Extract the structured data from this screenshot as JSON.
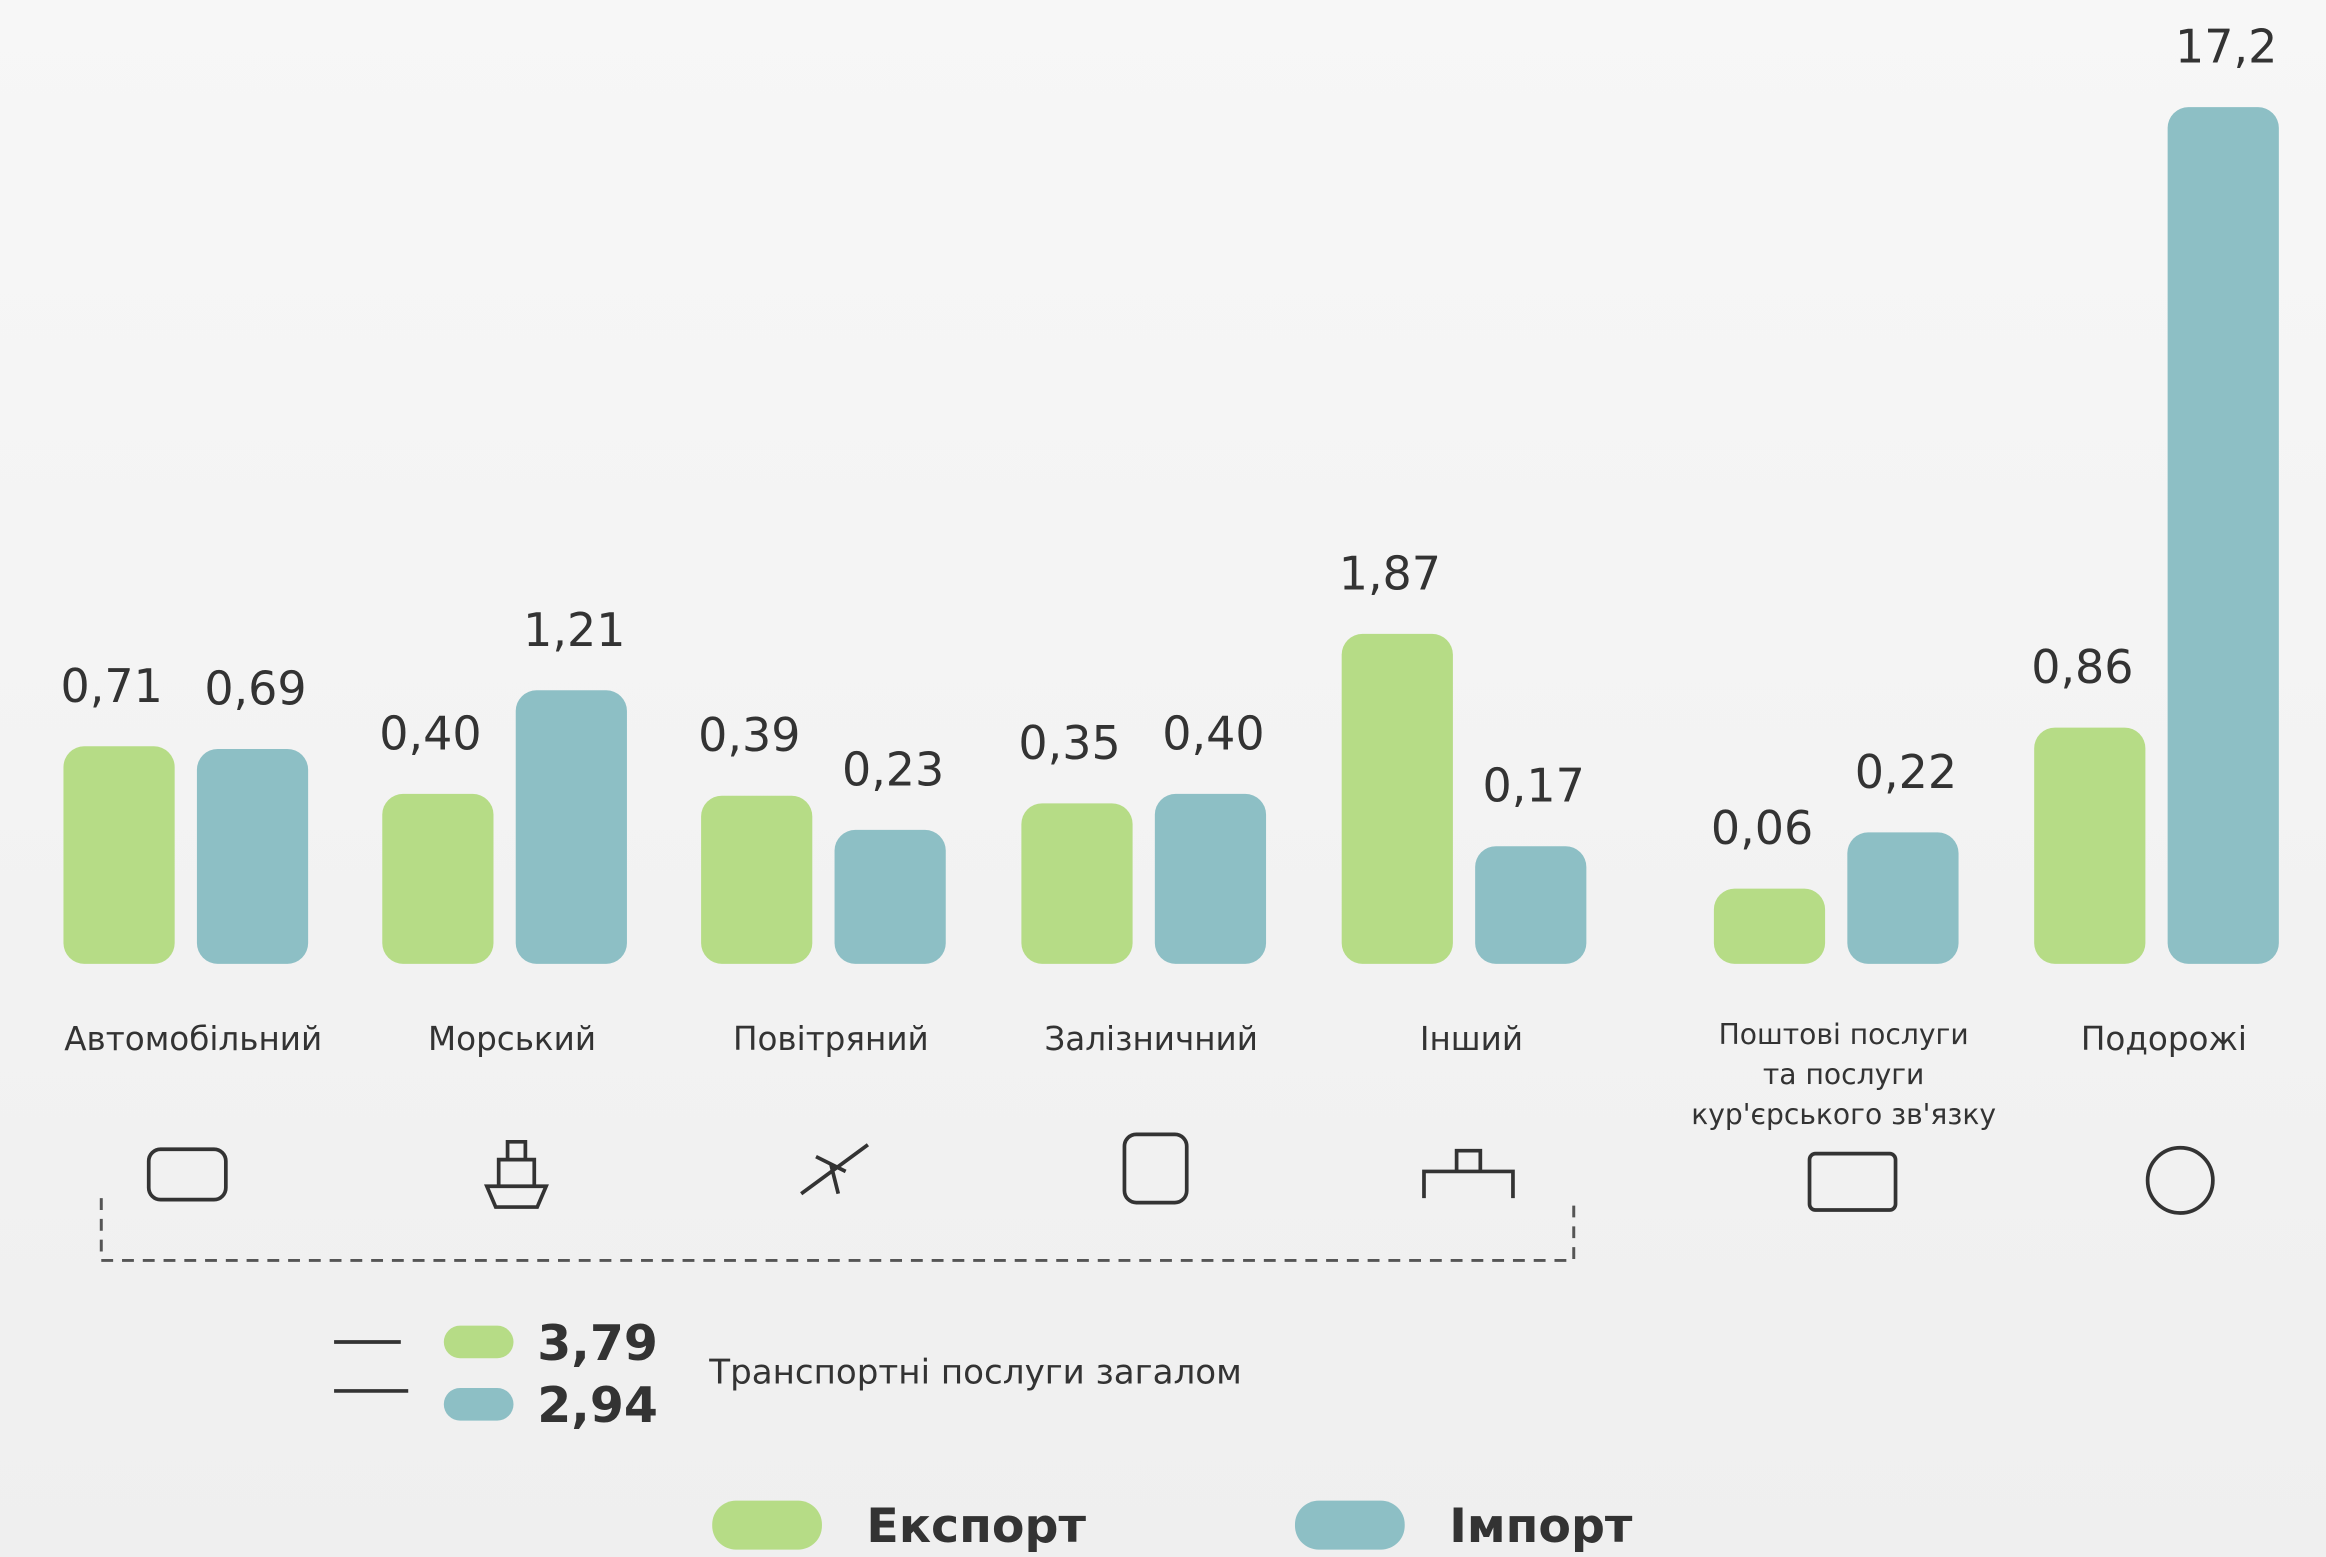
{
  "chart_data": {
    "type": "bar",
    "categories": [
      "Автомобільний",
      "Морський",
      "Повітряний",
      "Залізничний",
      "Інший",
      "Поштові послуги\nта послуги\nкур'єрського зв'язку",
      "Подорожі"
    ],
    "series": [
      {
        "name": "Експорт",
        "color": "#b6dc86",
        "values": [
          0.71,
          0.4,
          0.39,
          0.35,
          1.87,
          0.06,
          0.86
        ],
        "value_labels": [
          "0,71",
          "0,40",
          "0,39",
          "0,35",
          "1,87",
          "0,06",
          "0,86"
        ]
      },
      {
        "name": "Імпорт",
        "color": "#8dbfc5",
        "values": [
          0.69,
          1.21,
          0.23,
          0.4,
          0.17,
          0.22,
          17.2
        ],
        "value_labels": [
          "0,69",
          "1,21",
          "0,23",
          "0,40",
          "0,17",
          "0,22",
          "17,2"
        ]
      }
    ],
    "totals": {
      "label": "Транспортні послуги загалом",
      "values": [
        3.79,
        2.94
      ],
      "value_labels": [
        "3,79",
        "2,94"
      ]
    }
  }
}
